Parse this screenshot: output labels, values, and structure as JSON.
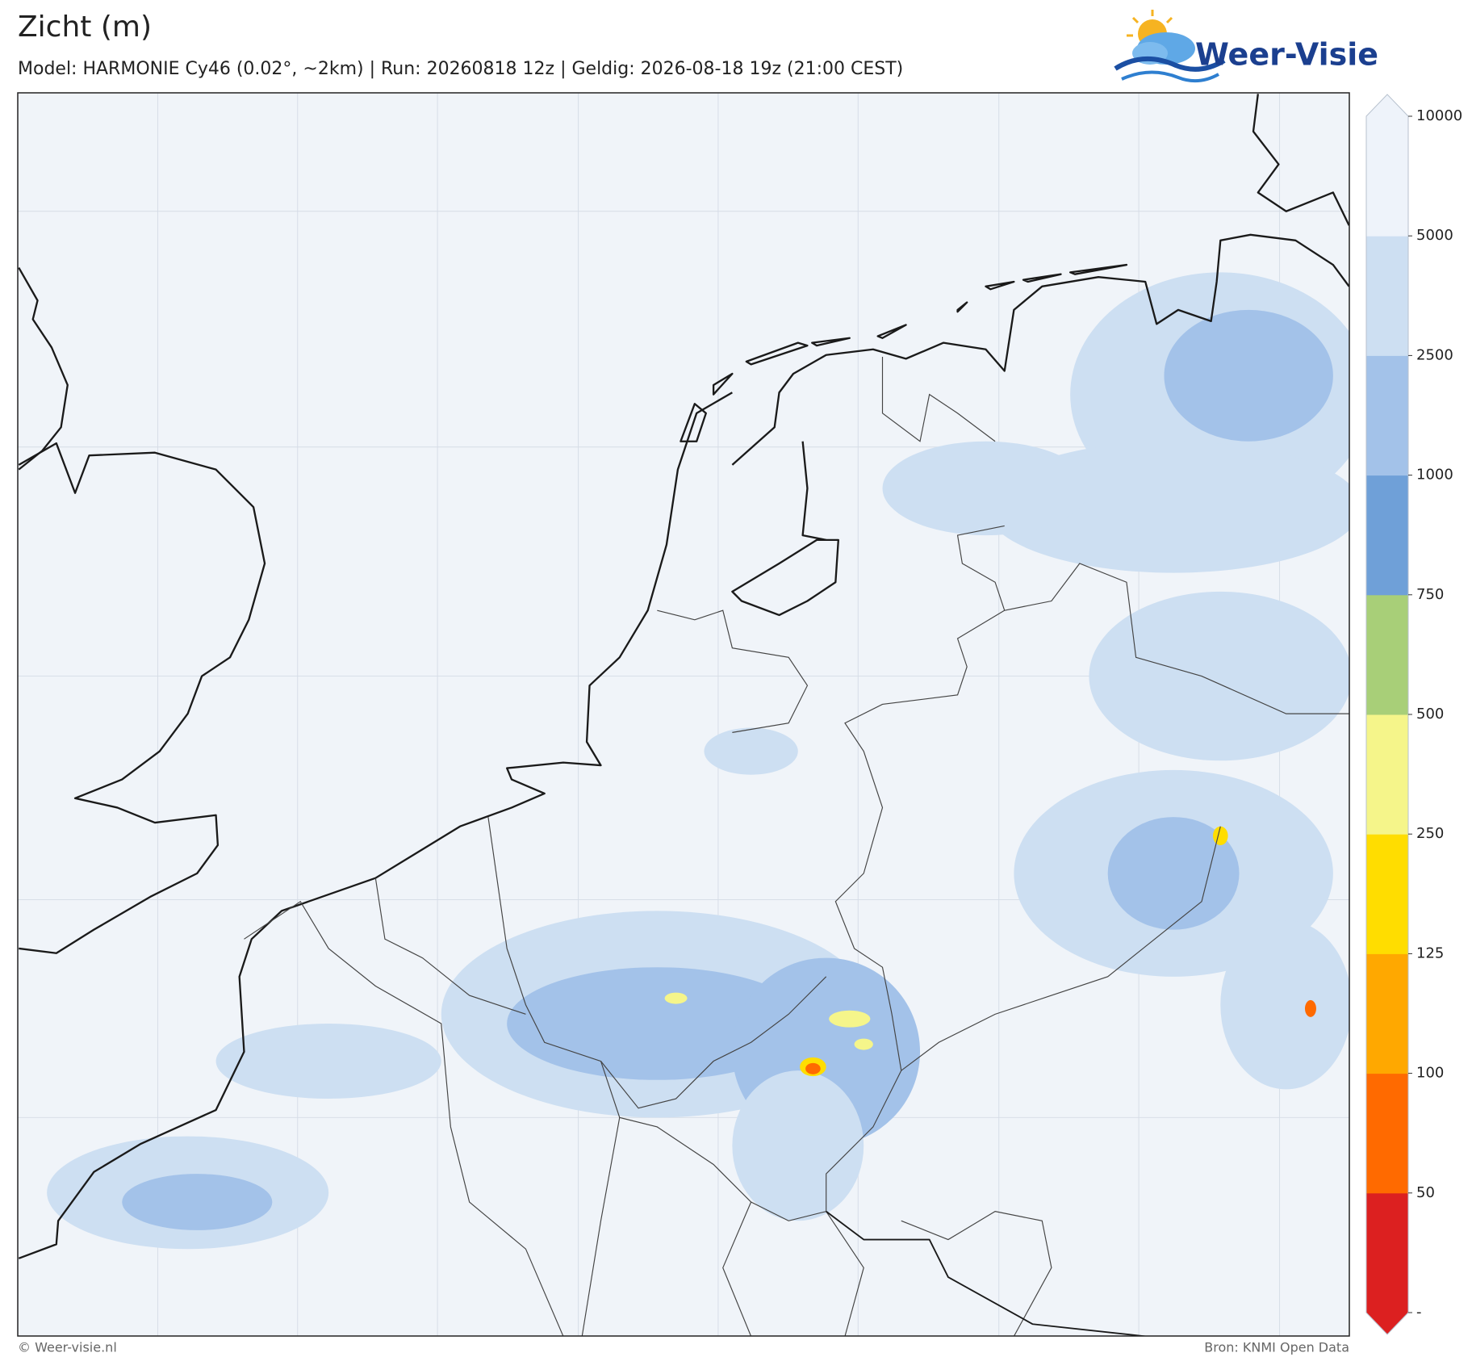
{
  "header": {
    "title": "Zicht (m)",
    "subtitle": "Model: HARMONIE Cy46 (0.02°, ~2km)  |  Run: 20260818 12z  |  Geldig: 2026-08-18 19z (21:00 CEST)"
  },
  "logo": {
    "text": "Weer-Visie"
  },
  "colorbar": {
    "ticks": [
      {
        "value": 0,
        "label": "-"
      },
      50,
      100,
      125,
      250,
      500,
      750,
      1000,
      2500,
      5000,
      10000
    ],
    "colors": [
      "#dc2020",
      "#ff6a00",
      "#ffa800",
      "#ffdd00",
      "#f5f58a",
      "#a8cf78",
      "#6fa0d8",
      "#a3c2e9",
      "#cddff2",
      "#eef3fa"
    ]
  },
  "footer": {
    "left": "© Weer-visie.nl",
    "right": "Bron: KNMI Open Data"
  }
}
